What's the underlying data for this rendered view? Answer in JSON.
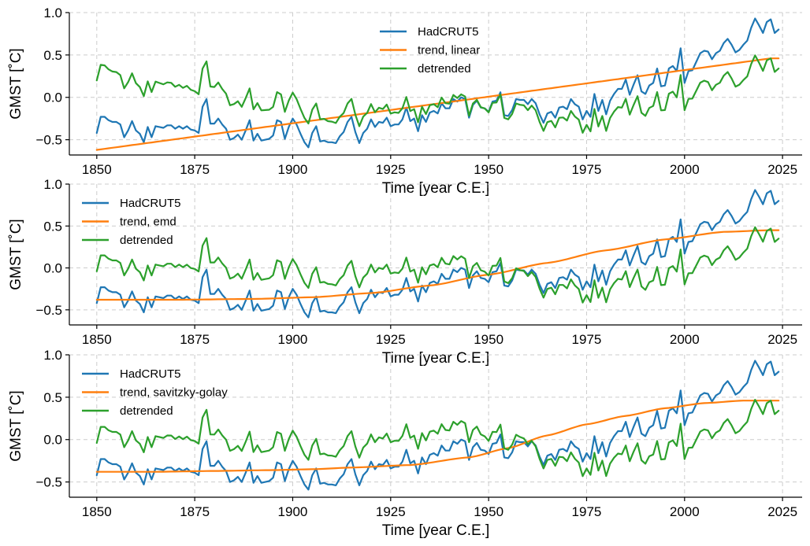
{
  "chart_data": [
    {
      "type": "line",
      "xlabel": "Time [year C.E.]",
      "ylabel": "GMST [˚C]",
      "xlim": [
        1843,
        2030
      ],
      "ylim": [
        -0.68,
        1.0
      ],
      "xticks": [
        1850,
        1875,
        1900,
        1925,
        1950,
        1975,
        2000,
        2025
      ],
      "yticks": [
        -0.5,
        0.0,
        0.5,
        1.0
      ],
      "ytick_labels": [
        "−0.5",
        "0.0",
        "0.5",
        "1.0"
      ],
      "grid": true,
      "legend_position": "top-center",
      "legend": [
        "HadCRUT5",
        "trend, linear",
        "detrended"
      ],
      "trend_anchors": [
        [
          1850,
          -0.62
        ],
        [
          2022,
          0.46
        ]
      ]
    },
    {
      "type": "line",
      "xlabel": "Time [year C.E.]",
      "ylabel": "GMST [˚C]",
      "xlim": [
        1843,
        2030
      ],
      "ylim": [
        -0.68,
        1.0
      ],
      "xticks": [
        1850,
        1875,
        1900,
        1925,
        1950,
        1975,
        2000,
        2025
      ],
      "yticks": [
        -0.5,
        0.0,
        0.5,
        1.0
      ],
      "ytick_labels": [
        "−0.5",
        "0.0",
        "0.5",
        "1.0"
      ],
      "grid": true,
      "legend_position": "top-left",
      "legend": [
        "HadCRUT5",
        "trend, emd",
        "detrended"
      ],
      "trend_anchors": [
        [
          1850,
          -0.38
        ],
        [
          1870,
          -0.38
        ],
        [
          1890,
          -0.37
        ],
        [
          1905,
          -0.35
        ],
        [
          1920,
          -0.3
        ],
        [
          1935,
          -0.21
        ],
        [
          1950,
          -0.08
        ],
        [
          1965,
          0.06
        ],
        [
          1980,
          0.21
        ],
        [
          1995,
          0.34
        ],
        [
          2010,
          0.43
        ],
        [
          2022,
          0.45
        ]
      ]
    },
    {
      "type": "line",
      "xlabel": "Time [year C.E.]",
      "ylabel": "GMST [˚C]",
      "xlim": [
        1843,
        2030
      ],
      "ylim": [
        -0.68,
        1.0
      ],
      "xticks": [
        1850,
        1875,
        1900,
        1925,
        1950,
        1975,
        2000,
        2025
      ],
      "yticks": [
        -0.5,
        0.0,
        0.5,
        1.0
      ],
      "ytick_labels": [
        "−0.5",
        "0.0",
        "0.5",
        "1.0"
      ],
      "grid": true,
      "legend_position": "top-left",
      "legend": [
        "HadCRUT5",
        "trend, savitzky-golay",
        "detrended"
      ],
      "trend_anchors": [
        [
          1850,
          -0.38
        ],
        [
          1865,
          -0.38
        ],
        [
          1880,
          -0.37
        ],
        [
          1895,
          -0.36
        ],
        [
          1905,
          -0.35
        ],
        [
          1915,
          -0.33
        ],
        [
          1930,
          -0.3
        ],
        [
          1945,
          -0.21
        ],
        [
          1955,
          -0.1
        ],
        [
          1965,
          0.05
        ],
        [
          1975,
          0.18
        ],
        [
          1985,
          0.28
        ],
        [
          1995,
          0.37
        ],
        [
          2005,
          0.43
        ],
        [
          2015,
          0.46
        ],
        [
          2022,
          0.46
        ]
      ]
    }
  ],
  "hadcrut5": {
    "x_start": 1850,
    "values": [
      -0.42,
      -0.23,
      -0.23,
      -0.27,
      -0.29,
      -0.29,
      -0.32,
      -0.47,
      -0.39,
      -0.28,
      -0.39,
      -0.43,
      -0.53,
      -0.35,
      -0.47,
      -0.34,
      -0.35,
      -0.36,
      -0.33,
      -0.33,
      -0.37,
      -0.34,
      -0.37,
      -0.34,
      -0.38,
      -0.39,
      -0.42,
      -0.11,
      -0.02,
      -0.31,
      -0.31,
      -0.25,
      -0.32,
      -0.37,
      -0.5,
      -0.48,
      -0.44,
      -0.5,
      -0.39,
      -0.27,
      -0.51,
      -0.43,
      -0.51,
      -0.5,
      -0.49,
      -0.45,
      -0.27,
      -0.29,
      -0.49,
      -0.35,
      -0.25,
      -0.32,
      -0.43,
      -0.53,
      -0.59,
      -0.42,
      -0.34,
      -0.52,
      -0.51,
      -0.53,
      -0.53,
      -0.54,
      -0.46,
      -0.41,
      -0.29,
      -0.23,
      -0.41,
      -0.54,
      -0.42,
      -0.37,
      -0.26,
      -0.35,
      -0.29,
      -0.3,
      -0.24,
      -0.34,
      -0.32,
      -0.32,
      -0.26,
      -0.12,
      -0.28,
      -0.25,
      -0.4,
      -0.21,
      -0.29,
      -0.18,
      -0.16,
      -0.19,
      -0.07,
      -0.13,
      -0.13,
      -0.02,
      -0.05,
      0.0,
      -0.02,
      -0.24,
      -0.09,
      -0.04,
      -0.12,
      -0.13,
      -0.17,
      -0.05,
      -0.04,
      0.06,
      -0.21,
      -0.22,
      -0.15,
      -0.02,
      -0.03,
      -0.03,
      -0.08,
      -0.02,
      -0.07,
      -0.2,
      -0.3,
      -0.19,
      -0.17,
      -0.24,
      -0.12,
      -0.11,
      -0.14,
      -0.02,
      -0.08,
      -0.11,
      -0.26,
      -0.16,
      -0.23,
      0.04,
      -0.16,
      -0.03,
      -0.2,
      -0.04,
      0.04,
      0.1,
      0.1,
      0.21,
      0.03,
      0.15,
      0.26,
      0.07,
      0.04,
      0.14,
      0.17,
      0.34,
      0.13,
      0.14,
      0.34,
      0.37,
      0.31,
      0.58,
      0.17,
      0.31,
      0.32,
      0.42,
      0.52,
      0.55,
      0.54,
      0.45,
      0.52,
      0.55,
      0.64,
      0.69,
      0.62,
      0.53,
      0.56,
      0.62,
      0.67,
      0.82,
      0.93,
      0.85,
      0.76,
      0.89,
      0.92,
      0.76,
      0.8
    ]
  }
}
